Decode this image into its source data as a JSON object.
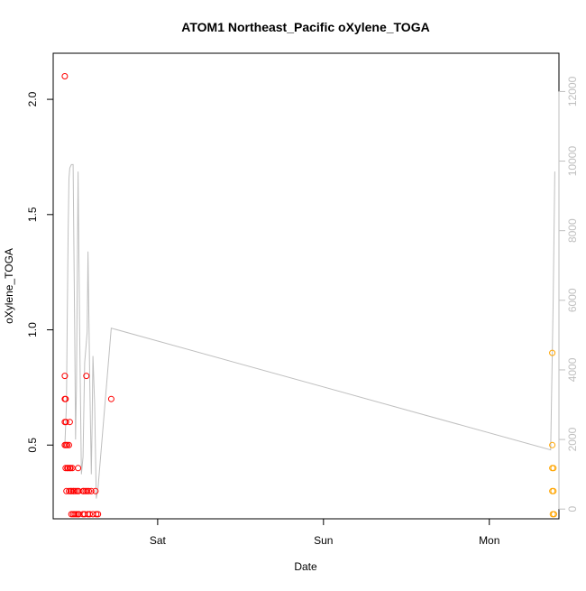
{
  "chart_data": {
    "type": "scatter",
    "title": "ATOM1 Northeast_Pacific oXylene_TOGA",
    "xlabel": "Date",
    "ylabel": "oXylene_TOGA",
    "x_ticks": [
      "Sat",
      "Sun",
      "Mon"
    ],
    "x_tick_days": [
      1,
      2,
      3
    ],
    "xlim_days": [
      0.37,
      3.42
    ],
    "ylim": [
      0.18,
      2.2
    ],
    "y_ticks": [
      "0.5",
      "1.0",
      "1.5",
      "2.0"
    ],
    "y_tick_values": [
      0.5,
      1.0,
      1.5,
      2.0
    ],
    "y2_ticks": [
      "0",
      "2000",
      "4000",
      "6000",
      "8000",
      "10000",
      "12000"
    ],
    "y2_tick_values": [
      0,
      2000,
      4000,
      6000,
      8000,
      10000,
      12000
    ],
    "y2lim": [
      -280,
      13100
    ],
    "colors": {
      "series_red": "#ff0000",
      "series_orange": "#ffa500",
      "line": "#bfbfbf",
      "axis": "#000000",
      "axis_right": "#bfbfbf"
    },
    "series": [
      {
        "color": "#ff0000",
        "points": [
          [
            0.44,
            2.1
          ],
          [
            0.44,
            0.8
          ],
          [
            0.44,
            0.7
          ],
          [
            0.445,
            0.7
          ],
          [
            0.44,
            0.6
          ],
          [
            0.447,
            0.6
          ],
          [
            0.44,
            0.5
          ],
          [
            0.447,
            0.5
          ],
          [
            0.455,
            0.5
          ],
          [
            0.445,
            0.4
          ],
          [
            0.455,
            0.4
          ],
          [
            0.45,
            0.3
          ],
          [
            0.46,
            0.4
          ],
          [
            0.465,
            0.5
          ],
          [
            0.47,
            0.6
          ],
          [
            0.47,
            0.4
          ],
          [
            0.475,
            0.4
          ],
          [
            0.465,
            0.3
          ],
          [
            0.475,
            0.3
          ],
          [
            0.48,
            0.3
          ],
          [
            0.485,
            0.4
          ],
          [
            0.48,
            0.2
          ],
          [
            0.49,
            0.2
          ],
          [
            0.49,
            0.3
          ],
          [
            0.495,
            0.3
          ],
          [
            0.5,
            0.2
          ],
          [
            0.505,
            0.3
          ],
          [
            0.51,
            0.2
          ],
          [
            0.515,
            0.3
          ],
          [
            0.52,
            0.2
          ],
          [
            0.52,
            0.4
          ],
          [
            0.523,
            0.3
          ],
          [
            0.525,
            0.2
          ],
          [
            0.55,
            0.3
          ],
          [
            0.555,
            0.3
          ],
          [
            0.55,
            0.2
          ],
          [
            0.56,
            0.2
          ],
          [
            0.565,
            0.3
          ],
          [
            0.57,
            0.8
          ],
          [
            0.575,
            0.3
          ],
          [
            0.58,
            0.2
          ],
          [
            0.585,
            0.3
          ],
          [
            0.59,
            0.2
          ],
          [
            0.6,
            0.3
          ],
          [
            0.61,
            0.2
          ],
          [
            0.625,
            0.3
          ],
          [
            0.63,
            0.2
          ],
          [
            0.64,
            0.2
          ],
          [
            0.72,
            0.7
          ]
        ]
      },
      {
        "color": "#ffa500",
        "points": [
          [
            3.38,
            0.9
          ],
          [
            3.38,
            0.5
          ],
          [
            3.38,
            0.4
          ],
          [
            3.387,
            0.4
          ],
          [
            3.38,
            0.3
          ],
          [
            3.387,
            0.3
          ],
          [
            3.383,
            0.2
          ],
          [
            3.39,
            0.2
          ]
        ]
      }
    ],
    "line_series": {
      "color": "#bfbfbf",
      "axis": "right",
      "points": [
        [
          0.44,
          1800
        ],
        [
          0.45,
          3000
        ],
        [
          0.455,
          5500
        ],
        [
          0.46,
          8000
        ],
        [
          0.465,
          9500
        ],
        [
          0.47,
          9800
        ],
        [
          0.48,
          9900
        ],
        [
          0.49,
          9900
        ],
        [
          0.5,
          5000
        ],
        [
          0.505,
          2000
        ],
        [
          0.51,
          3500
        ],
        [
          0.52,
          9700
        ],
        [
          0.53,
          5000
        ],
        [
          0.54,
          1000
        ],
        [
          0.55,
          1500
        ],
        [
          0.56,
          4200
        ],
        [
          0.57,
          4800
        ],
        [
          0.575,
          5100
        ],
        [
          0.58,
          7400
        ],
        [
          0.59,
          3800
        ],
        [
          0.6,
          1000
        ],
        [
          0.605,
          2500
        ],
        [
          0.61,
          4400
        ],
        [
          0.62,
          3000
        ],
        [
          0.63,
          300
        ],
        [
          0.64,
          600
        ],
        [
          0.72,
          5200
        ],
        [
          3.37,
          1700
        ],
        [
          3.385,
          6000
        ],
        [
          3.395,
          9700
        ]
      ]
    }
  }
}
